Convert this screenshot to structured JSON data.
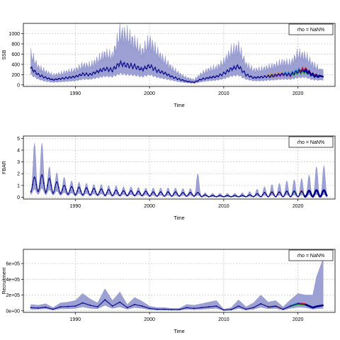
{
  "colors": {
    "band": "#9da0d3",
    "band_edge": "#8286c4",
    "main_line": "#1a1a8c",
    "main_points": "#00008b",
    "grid": "#c8c8c8",
    "peel1": "#e0142a",
    "peel2": "#22aa22",
    "peel3": "#2196d8",
    "peel4": "#b94fd0",
    "peel5": "#e8a020",
    "peel6": "#606060"
  },
  "chart_data": [
    {
      "type": "line",
      "title": "",
      "xlabel": "Time",
      "ylabel": "SSB",
      "legend": "rho = NaN%",
      "legend_position": "top-right",
      "grid": true,
      "x_ticks": [
        1990,
        2000,
        2010,
        2020
      ],
      "y_ticks": [
        0,
        200,
        400,
        600,
        800,
        1000
      ],
      "xlim": [
        1983,
        2025
      ],
      "ylim": [
        -30,
        1200
      ],
      "series": [
        {
          "x": [
            1984,
            1985,
            1986,
            1987,
            1988,
            1989,
            1990,
            1991,
            1992,
            1993,
            1994,
            1995,
            1996,
            1997,
            1998,
            1999,
            2000,
            2001,
            2002,
            2003,
            2004,
            2005,
            2006,
            2007,
            2008,
            2009,
            2010,
            2011,
            2012,
            2013,
            2014,
            2015,
            2016,
            2017,
            2018,
            2019,
            2020,
            2021,
            2022,
            2023
          ],
          "y": [
            330,
            200,
            140,
            100,
            120,
            140,
            160,
            210,
            200,
            260,
            310,
            290,
            420,
            380,
            360,
            300,
            370,
            280,
            230,
            160,
            110,
            70,
            50,
            110,
            140,
            160,
            220,
            310,
            360,
            200,
            140,
            150,
            170,
            190,
            210,
            200,
            260,
            280,
            190,
            160
          ],
          "lower": [
            200,
            110,
            70,
            50,
            60,
            70,
            80,
            110,
            110,
            140,
            170,
            160,
            220,
            200,
            190,
            160,
            200,
            150,
            120,
            90,
            60,
            40,
            30,
            60,
            80,
            90,
            120,
            170,
            190,
            110,
            80,
            80,
            90,
            100,
            110,
            110,
            140,
            150,
            100,
            90
          ],
          "upper": [
            600,
            350,
            260,
            190,
            220,
            260,
            290,
            380,
            380,
            480,
            600,
            560,
            1000,
            960,
            820,
            640,
            850,
            640,
            480,
            330,
            220,
            140,
            100,
            220,
            300,
            330,
            450,
            650,
            730,
            400,
            290,
            300,
            340,
            380,
            440,
            420,
            600,
            560,
            400,
            300
          ]
        }
      ]
    },
    {
      "type": "line",
      "title": "",
      "xlabel": "Time",
      "ylabel": "FBAR",
      "legend": "rho = NaN%",
      "legend_position": "top-right",
      "grid": true,
      "x_ticks": [
        1990,
        2000,
        2010,
        2020
      ],
      "y_ticks": [
        0,
        1,
        2,
        3,
        4,
        5
      ],
      "xlim": [
        1983,
        2025
      ],
      "ylim": [
        -0.15,
        5.2
      ],
      "series": [
        {
          "x": [
            1984,
            1985,
            1986,
            1987,
            1988,
            1989,
            1990,
            1991,
            1992,
            1993,
            1994,
            1995,
            1996,
            1997,
            1998,
            1999,
            2000,
            2001,
            2002,
            2003,
            2004,
            2005,
            2006,
            2007,
            2008,
            2009,
            2010,
            2011,
            2012,
            2013,
            2014,
            2015,
            2016,
            2017,
            2018,
            2019,
            2020,
            2021,
            2022,
            2023
          ],
          "peak": [
            1.7,
            1.9,
            1.6,
            1.3,
            1.0,
            0.9,
            0.85,
            0.8,
            0.75,
            0.7,
            0.65,
            0.6,
            0.55,
            0.55,
            0.5,
            0.5,
            0.45,
            0.45,
            0.45,
            0.45,
            0.4,
            0.4,
            0.4,
            0.2,
            0.15,
            0.15,
            0.15,
            0.15,
            0.15,
            0.2,
            0.3,
            0.4,
            0.45,
            0.45,
            0.5,
            0.5,
            0.5,
            0.55,
            0.6,
            0.6
          ],
          "low": [
            0.45,
            0.5,
            0.4,
            0.35,
            0.3,
            0.25,
            0.2,
            0.2,
            0.2,
            0.2,
            0.15,
            0.15,
            0.15,
            0.15,
            0.15,
            0.15,
            0.1,
            0.1,
            0.1,
            0.1,
            0.1,
            0.1,
            0.1,
            0.05,
            0.05,
            0.05,
            0.05,
            0.05,
            0.05,
            0.05,
            0.05,
            0.05,
            0.05,
            0.05,
            0.05,
            0.05,
            0.05,
            0.05,
            0.05,
            0.05
          ],
          "upper_peak": [
            4.6,
            4.6,
            2.6,
            2.1,
            1.7,
            1.4,
            1.3,
            1.2,
            1.1,
            1.1,
            1.0,
            1.0,
            0.9,
            0.9,
            0.85,
            0.8,
            0.8,
            0.8,
            0.8,
            0.8,
            0.75,
            0.75,
            2.0,
            0.4,
            0.35,
            0.35,
            0.35,
            0.35,
            0.4,
            0.5,
            0.7,
            0.9,
            1.1,
            1.2,
            1.4,
            1.5,
            1.6,
            1.9,
            2.6,
            2.7
          ]
        }
      ]
    },
    {
      "type": "line",
      "title": "",
      "xlabel": "Time",
      "ylabel": "Recruitment",
      "legend": "rho = NaN%",
      "legend_position": "top-right",
      "grid": true,
      "x_ticks": [
        1990,
        2000,
        2010,
        2020
      ],
      "y_ticks": [
        0,
        200000,
        400000,
        600000
      ],
      "y_tick_labels": [
        "0e+00",
        "2e+05",
        "4e+05",
        "6e+05"
      ],
      "xlim": [
        1983,
        2025
      ],
      "ylim": [
        -20000,
        780000
      ],
      "series": [
        {
          "x": [
            1984,
            1985,
            1986,
            1987,
            1988,
            1989,
            1990,
            1991,
            1992,
            1993,
            1994,
            1995,
            1996,
            1997,
            1998,
            1999,
            2000,
            2001,
            2002,
            2003,
            2004,
            2005,
            2006,
            2007,
            2008,
            2009,
            2010,
            2011,
            2012,
            2013,
            2014,
            2015,
            2016,
            2017,
            2018,
            2019,
            2020,
            2021,
            2022,
            2023
          ],
          "y": [
            40000,
            35000,
            45000,
            20000,
            50000,
            55000,
            60000,
            100000,
            70000,
            50000,
            140000,
            60000,
            110000,
            40000,
            80000,
            60000,
            30000,
            20000,
            20000,
            15000,
            15000,
            40000,
            30000,
            40000,
            50000,
            60000,
            10000,
            15000,
            60000,
            20000,
            40000,
            90000,
            50000,
            60000,
            20000,
            60000,
            90000,
            80000,
            40000,
            70000
          ],
          "lower": [
            20000,
            20000,
            25000,
            10000,
            25000,
            25000,
            30000,
            50000,
            30000,
            25000,
            70000,
            30000,
            50000,
            20000,
            40000,
            30000,
            15000,
            10000,
            10000,
            8000,
            8000,
            20000,
            15000,
            20000,
            25000,
            30000,
            5000,
            8000,
            30000,
            10000,
            20000,
            45000,
            25000,
            30000,
            10000,
            30000,
            45000,
            40000,
            20000,
            30000
          ],
          "upper": [
            80000,
            70000,
            90000,
            40000,
            100000,
            110000,
            130000,
            220000,
            150000,
            100000,
            280000,
            130000,
            240000,
            80000,
            170000,
            120000,
            60000,
            40000,
            40000,
            30000,
            30000,
            80000,
            70000,
            90000,
            110000,
            130000,
            20000,
            40000,
            140000,
            50000,
            100000,
            200000,
            110000,
            130000,
            50000,
            140000,
            220000,
            200000,
            200000,
            660000
          ]
        }
      ]
    }
  ]
}
